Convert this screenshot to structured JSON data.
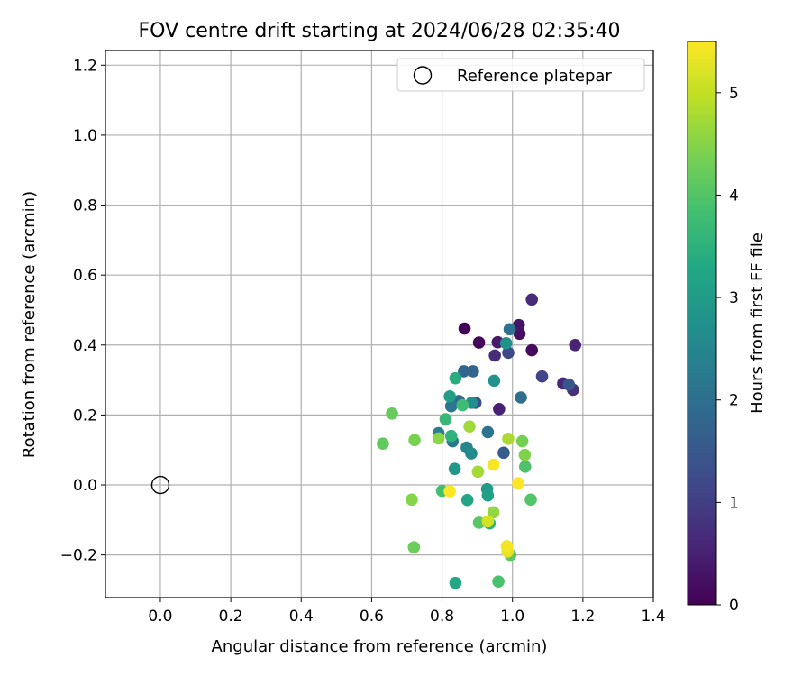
{
  "chart_data": {
    "type": "scatter",
    "title": "FOV centre drift starting at 2024/06/28 02:35:40",
    "xlabel": "Angular distance from reference (arcmin)",
    "ylabel": "Rotation from reference (arcmin)",
    "xlim": [
      -0.156,
      1.4
    ],
    "ylim": [
      -0.322,
      1.242
    ],
    "xticks": [
      0.0,
      0.2,
      0.4,
      0.6,
      0.8,
      1.0,
      1.2,
      1.4
    ],
    "xtick_labels": [
      "0.0",
      "0.2",
      "0.4",
      "0.6",
      "0.8",
      "1.0",
      "1.2",
      "1.4"
    ],
    "yticks": [
      -0.2,
      0.0,
      0.2,
      0.4,
      0.6,
      0.8,
      1.0,
      1.2
    ],
    "ytick_labels": [
      "−0.2",
      "0.0",
      "0.2",
      "0.4",
      "0.6",
      "0.8",
      "1.0",
      "1.2"
    ],
    "grid": true,
    "legend": {
      "placement": "top-right",
      "entries": [
        {
          "label": "Reference platepar",
          "marker": "open-circle"
        }
      ]
    },
    "reference_point": {
      "x": 0.0,
      "y": 0.0
    },
    "colorbar": {
      "label": "Hours from first FF file",
      "colormap": "viridis",
      "range": [
        0,
        5.5
      ],
      "ticks": [
        0,
        1,
        2,
        3,
        4,
        5
      ],
      "tick_labels": [
        "0",
        "1",
        "2",
        "3",
        "4",
        "5"
      ]
    },
    "points": [
      {
        "x": 0.864,
        "y": 0.447,
        "h": 0.05
      },
      {
        "x": 0.905,
        "y": 0.407,
        "h": 0.1
      },
      {
        "x": 1.055,
        "y": 0.385,
        "h": 0.15
      },
      {
        "x": 1.02,
        "y": 0.432,
        "h": 0.2
      },
      {
        "x": 1.018,
        "y": 0.457,
        "h": 0.3
      },
      {
        "x": 0.958,
        "y": 0.408,
        "h": 0.4
      },
      {
        "x": 0.962,
        "y": 0.217,
        "h": 0.5
      },
      {
        "x": 1.178,
        "y": 0.4,
        "h": 0.55
      },
      {
        "x": 1.144,
        "y": 0.29,
        "h": 0.6
      },
      {
        "x": 1.055,
        "y": 0.53,
        "h": 0.65
      },
      {
        "x": 0.95,
        "y": 0.37,
        "h": 0.7
      },
      {
        "x": 1.172,
        "y": 0.272,
        "h": 0.75
      },
      {
        "x": 1.084,
        "y": 0.31,
        "h": 1.1
      },
      {
        "x": 0.988,
        "y": 0.378,
        "h": 1.2
      },
      {
        "x": 0.895,
        "y": 0.235,
        "h": 1.3
      },
      {
        "x": 1.16,
        "y": 0.287,
        "h": 1.45
      },
      {
        "x": 0.975,
        "y": 0.092,
        "h": 1.6
      },
      {
        "x": 0.888,
        "y": 0.325,
        "h": 1.75
      },
      {
        "x": 0.862,
        "y": 0.325,
        "h": 1.8
      },
      {
        "x": 0.848,
        "y": 0.24,
        "h": 1.9
      },
      {
        "x": 1.024,
        "y": 0.25,
        "h": 2.0
      },
      {
        "x": 0.992,
        "y": 0.445,
        "h": 2.05
      },
      {
        "x": 0.93,
        "y": 0.151,
        "h": 2.1
      },
      {
        "x": 0.826,
        "y": 0.225,
        "h": 2.15
      },
      {
        "x": 0.83,
        "y": 0.125,
        "h": 2.2
      },
      {
        "x": 0.79,
        "y": 0.148,
        "h": 2.3
      },
      {
        "x": 0.87,
        "y": 0.107,
        "h": 2.5
      },
      {
        "x": 0.883,
        "y": 0.09,
        "h": 2.6
      },
      {
        "x": 0.884,
        "y": 0.235,
        "h": 2.7
      },
      {
        "x": 0.982,
        "y": 0.405,
        "h": 2.75
      },
      {
        "x": 0.948,
        "y": 0.298,
        "h": 2.8
      },
      {
        "x": 0.836,
        "y": 0.046,
        "h": 2.9
      },
      {
        "x": 0.928,
        "y": -0.012,
        "h": 3.0
      },
      {
        "x": 0.822,
        "y": 0.253,
        "h": 3.05
      },
      {
        "x": 0.93,
        "y": -0.03,
        "h": 3.1
      },
      {
        "x": 0.872,
        "y": -0.043,
        "h": 3.2
      },
      {
        "x": 0.838,
        "y": -0.28,
        "h": 3.3
      },
      {
        "x": 0.838,
        "y": 0.305,
        "h": 3.4
      },
      {
        "x": 0.935,
        "y": -0.11,
        "h": 3.5
      },
      {
        "x": 0.826,
        "y": 0.14,
        "h": 3.55
      },
      {
        "x": 0.81,
        "y": 0.188,
        "h": 3.65
      },
      {
        "x": 0.858,
        "y": 0.228,
        "h": 3.75
      },
      {
        "x": 0.8,
        "y": -0.017,
        "h": 3.85
      },
      {
        "x": 0.96,
        "y": -0.276,
        "h": 3.9
      },
      {
        "x": 1.036,
        "y": 0.052,
        "h": 3.95
      },
      {
        "x": 1.052,
        "y": -0.042,
        "h": 4.0
      },
      {
        "x": 0.905,
        "y": -0.108,
        "h": 4.05
      },
      {
        "x": 0.994,
        "y": -0.2,
        "h": 4.1
      },
      {
        "x": 0.632,
        "y": 0.118,
        "h": 4.15
      },
      {
        "x": 0.658,
        "y": 0.204,
        "h": 4.2
      },
      {
        "x": 0.72,
        "y": -0.178,
        "h": 4.25
      },
      {
        "x": 1.028,
        "y": 0.125,
        "h": 4.35
      },
      {
        "x": 0.722,
        "y": 0.128,
        "h": 4.4
      },
      {
        "x": 1.035,
        "y": 0.086,
        "h": 4.45
      },
      {
        "x": 0.714,
        "y": -0.042,
        "h": 4.5
      },
      {
        "x": 0.79,
        "y": 0.133,
        "h": 4.55
      },
      {
        "x": 0.946,
        "y": -0.078,
        "h": 4.6
      },
      {
        "x": 0.878,
        "y": 0.167,
        "h": 4.7
      },
      {
        "x": 0.902,
        "y": 0.038,
        "h": 4.75
      },
      {
        "x": 0.988,
        "y": 0.132,
        "h": 4.8
      },
      {
        "x": 0.93,
        "y": -0.104,
        "h": 5.15
      },
      {
        "x": 0.986,
        "y": -0.19,
        "h": 5.3
      },
      {
        "x": 0.984,
        "y": -0.175,
        "h": 5.4
      },
      {
        "x": 0.946,
        "y": 0.058,
        "h": 5.45
      },
      {
        "x": 0.822,
        "y": -0.018,
        "h": 5.5
      },
      {
        "x": 1.016,
        "y": 0.005,
        "h": 5.5
      }
    ]
  }
}
